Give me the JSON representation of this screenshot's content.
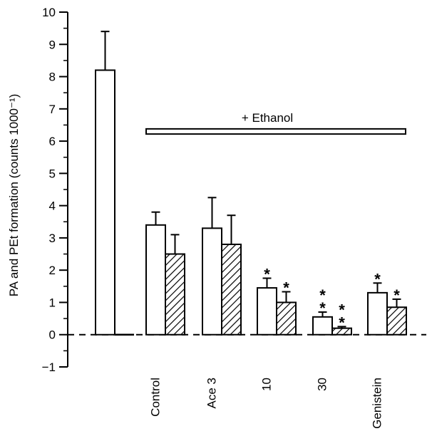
{
  "chart_data": {
    "type": "bar",
    "ylabel": "PA and PEt formation (counts 1000⁻¹)",
    "ylim": [
      -1,
      10
    ],
    "yticks": [
      "−1",
      "0",
      "1",
      "2",
      "3",
      "4",
      "5",
      "6",
      "7",
      "8",
      "9",
      "10"
    ],
    "banner_label": "+ Ethanol",
    "baseline_style": "dashed at y=0",
    "groups": [
      {
        "label": "",
        "bars": [
          {
            "pattern": "open",
            "value": 8.2,
            "error": 1.2
          },
          {
            "pattern": "hatched",
            "value": 0.0,
            "error": 0
          }
        ],
        "stars": []
      },
      {
        "label": "Control",
        "bars": [
          {
            "pattern": "open",
            "value": 3.4,
            "error": 0.4
          },
          {
            "pattern": "hatched",
            "value": 2.5,
            "error": 0.6
          }
        ],
        "stars": []
      },
      {
        "label": "Ace 3",
        "bars": [
          {
            "pattern": "open",
            "value": 3.3,
            "error": 0.95
          },
          {
            "pattern": "hatched",
            "value": 2.8,
            "error": 0.9
          }
        ],
        "stars": []
      },
      {
        "label": "10",
        "bars": [
          {
            "pattern": "open",
            "value": 1.45,
            "error": 0.3
          },
          {
            "pattern": "hatched",
            "value": 1.0,
            "error": 0.33
          }
        ],
        "stars": [
          "*",
          "*"
        ]
      },
      {
        "label": "30",
        "bars": [
          {
            "pattern": "open",
            "value": 0.55,
            "error": 0.15
          },
          {
            "pattern": "hatched",
            "value": 0.2,
            "error": 0.05
          }
        ],
        "stars": [
          "**",
          "**"
        ]
      },
      {
        "label": "Genistein",
        "bars": [
          {
            "pattern": "open",
            "value": 1.3,
            "error": 0.3
          },
          {
            "pattern": "hatched",
            "value": 0.85,
            "error": 0.25
          }
        ],
        "stars": [
          "*",
          "*"
        ]
      }
    ]
  }
}
